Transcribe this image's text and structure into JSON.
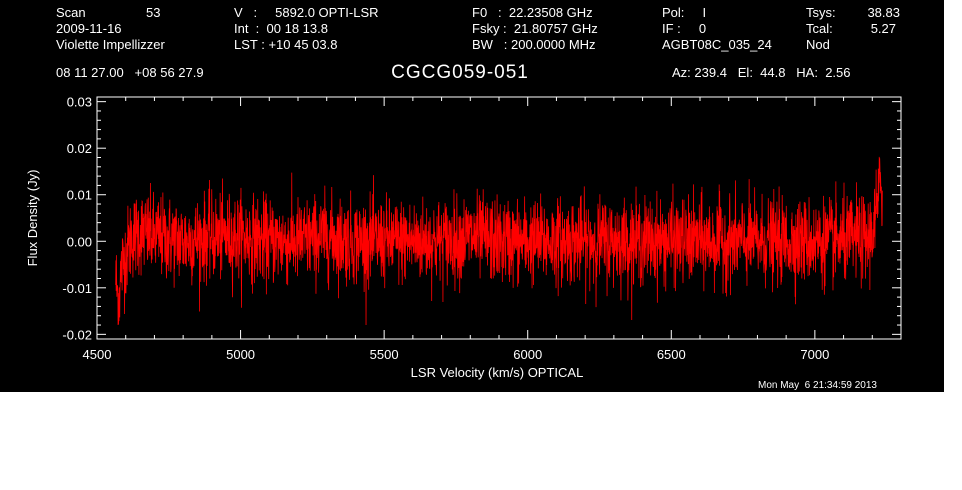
{
  "header": {
    "col1": [
      "Scan",
      "2009-11-16",
      "Violette Impellizzer"
    ],
    "scan_number": "53",
    "col2": [
      "V   :     5892.0 OPTI-LSR",
      "Int  :  00 18 13.8",
      "LST : +10 45 03.8"
    ],
    "col3": [
      "F0   :  22.23508 GHz",
      "Fsky :  21.80757 GHz",
      "BW   : 200.0000 MHz"
    ],
    "col4": [
      "Pol:     I",
      "IF :     0",
      "AGBT08C_035_24"
    ],
    "col5_labels": [
      "Tsys:",
      "Tcal:",
      "Nod"
    ],
    "col5_values": [
      "38.83",
      "5.27",
      ""
    ],
    "coords": "08 11 27.00   +08 56 27.9",
    "source": "CGCG059-051",
    "az_el_ha": "Az: 239.4   El:  44.8   HA:  2.56",
    "timestamp": "Mon May  6 21:34:59 2013"
  },
  "chart_data": {
    "type": "line",
    "title": "CGCG059-051",
    "xlabel": "LSR Velocity (km/s) OPTICAL",
    "ylabel": "Flux Density (Jy)",
    "xlim": [
      4500,
      7300
    ],
    "ylim": [
      -0.021,
      0.031
    ],
    "xticks": [
      4500,
      5000,
      5500,
      6000,
      6500,
      7000
    ],
    "yticks": [
      -0.02,
      -0.01,
      0.0,
      0.01,
      0.02,
      0.03
    ],
    "ytick_labels": [
      "-0.02",
      "-0.01",
      "0.00",
      "0.01",
      "0.02",
      "0.03"
    ],
    "series_color": "#ff0000",
    "axis_color": "#ffffff",
    "background": "#000000",
    "series": [
      {
        "x": [
          4565,
          4575,
          4585,
          4600,
          4620,
          4650,
          4700,
          4800,
          4900,
          5000,
          5100,
          5200,
          5300,
          5400,
          5500,
          5600,
          5700,
          5800,
          5900,
          6000,
          6100,
          6200,
          6300,
          6400,
          6500,
          6600,
          6700,
          6800,
          6900,
          7000,
          7100,
          7150,
          7180,
          7200,
          7210,
          7220,
          7225,
          7230,
          7235
        ],
        "y": [
          -0.008,
          -0.013,
          -0.006,
          -0.003,
          0.001,
          0.002,
          0.001,
          0.0,
          0.001,
          0.001,
          0.0,
          0.0,
          0.001,
          0.0,
          0.0,
          0.0,
          0.0,
          0.001,
          0.0,
          0.0,
          0.0,
          0.0,
          0.0,
          0.0,
          0.0,
          0.0,
          0.0,
          0.0,
          0.0,
          0.0,
          0.0,
          0.001,
          0.0,
          0.002,
          0.005,
          0.008,
          0.011,
          0.014,
          0.009
        ],
        "noise_rms": 0.0045
      }
    ]
  }
}
